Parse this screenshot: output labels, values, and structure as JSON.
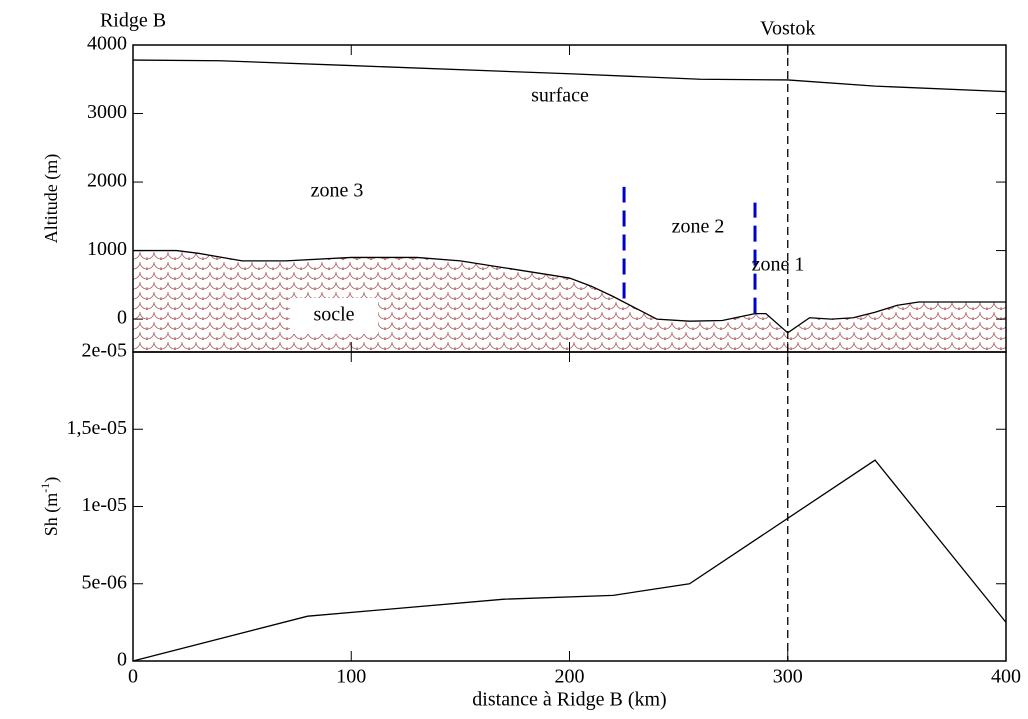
{
  "chart_data": [
    {
      "type": "line",
      "y_label": "Altitude (m)",
      "ylim": [
        -480,
        4000
      ],
      "yticks": [
        0,
        1000,
        2000,
        3000,
        4000
      ],
      "xlim": [
        0,
        400
      ],
      "xticks": [
        0,
        100,
        200,
        300,
        400
      ],
      "series": [
        {
          "name": "surface",
          "color": "#000000",
          "x": [
            0,
            40,
            100,
            200,
            260,
            300,
            340,
            400
          ],
          "values": [
            3780,
            3770,
            3700,
            3580,
            3500,
            3490,
            3400,
            3320
          ]
        },
        {
          "name": "socle",
          "color": "#000000",
          "fill": "#b06060",
          "x": [
            0,
            20,
            30,
            50,
            70,
            100,
            130,
            150,
            170,
            190,
            200,
            210,
            220,
            240,
            255,
            270,
            285,
            290,
            300,
            310,
            320,
            330,
            340,
            350,
            360,
            400
          ],
          "values": [
            1000,
            1000,
            960,
            850,
            850,
            900,
            900,
            850,
            750,
            650,
            600,
            480,
            330,
            0,
            -30,
            -20,
            80,
            80,
            -200,
            20,
            0,
            20,
            100,
            200,
            250,
            250
          ]
        }
      ],
      "markers": [
        {
          "x": 225,
          "y": [
            300,
            1930
          ],
          "color": "#0000cc"
        },
        {
          "x": 285,
          "y": [
            80,
            1700
          ],
          "color": "#0000cc"
        }
      ],
      "vline": {
        "x": 300,
        "label": "Vostok"
      },
      "start_label": "Ridge B",
      "annotations": [
        "zone 3",
        "zone 2",
        "zone 1"
      ]
    },
    {
      "type": "line",
      "y_label": [
        "Sh (m",
        "-1",
        ")"
      ],
      "x_label": "distance à Ridge B (km)",
      "ylim": [
        0,
        2e-05
      ],
      "yticks": [
        0,
        {
          "value": 5e-06,
          "label": "5e-06"
        },
        {
          "value": 1e-05,
          "label": "1e-05"
        },
        {
          "value": 1.5e-05,
          "label": "1,5e-05"
        },
        {
          "value": 2e-05,
          "label": "2e-05"
        }
      ],
      "xlim": [
        0,
        400
      ],
      "xticks": [
        0,
        100,
        200,
        300,
        400
      ],
      "series": [
        {
          "color": "#000000",
          "x": [
            0,
            80,
            170,
            220,
            255,
            340,
            400
          ],
          "values": [
            0,
            2.9e-06,
            4e-06,
            4.25e-06,
            5e-06,
            1.3e-05,
            2.5e-06
          ]
        }
      ]
    }
  ]
}
